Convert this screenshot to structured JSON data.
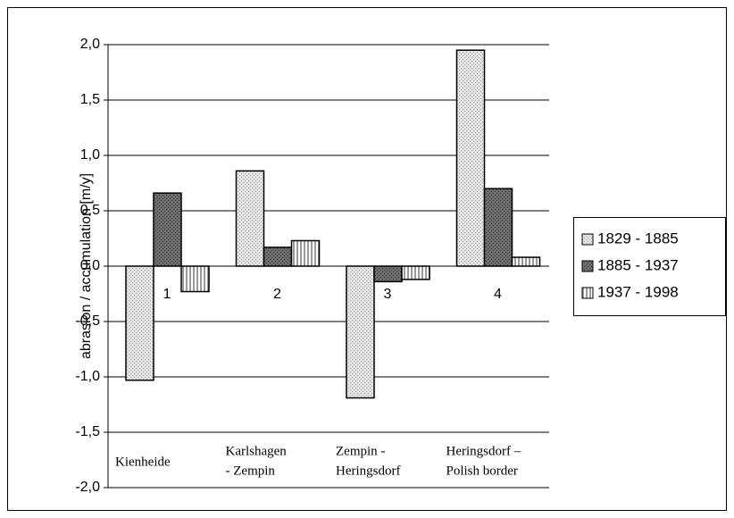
{
  "chart_data": {
    "type": "bar",
    "y_label": "abrasion / accumulation [m/y]",
    "categories": [
      "1",
      "2",
      "3",
      "4"
    ],
    "category_names": [
      [
        "Kienheide"
      ],
      [
        "Karlshagen",
        "- Zempin"
      ],
      [
        "Zempin -",
        "Heringsdorf"
      ],
      [
        "Heringsdorf –",
        "Polish border"
      ]
    ],
    "series": [
      {
        "name": "1829 - 1885",
        "color": "#e4e4e4",
        "pattern": "dots",
        "values": [
          -1.03,
          0.86,
          -1.19,
          1.95
        ]
      },
      {
        "name": "1885 - 1937",
        "color": "#6e6e6e",
        "pattern": "dots",
        "values": [
          0.66,
          0.17,
          -0.14,
          0.7
        ]
      },
      {
        "name": "1937 - 1998",
        "color": "#9a9a9a",
        "pattern": "stripes",
        "values": [
          -0.23,
          0.23,
          -0.12,
          0.08
        ]
      }
    ],
    "ylim": [
      -2,
      2
    ],
    "yticks": [
      {
        "value": -2,
        "label": "-2,0"
      },
      {
        "value": -1.5,
        "label": "-1,5"
      },
      {
        "value": -1,
        "label": "-1,0"
      },
      {
        "value": -0.5,
        "label": "-0,5"
      },
      {
        "value": 0,
        "label": "0,0"
      },
      {
        "value": 0.5,
        "label": "0,5"
      },
      {
        "value": 1,
        "label": "1,0"
      },
      {
        "value": 1.5,
        "label": "1,5"
      },
      {
        "value": 2,
        "label": "2,0"
      }
    ],
    "grid": true,
    "legend": "right"
  }
}
